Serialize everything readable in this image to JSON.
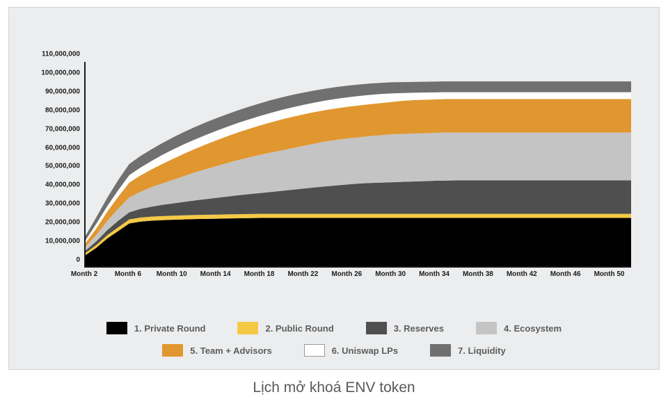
{
  "caption": "Lịch mở khoá ENV token",
  "chart": {
    "type": "stacked-area",
    "background_color": "#ecedee",
    "plot_background": "#ecedee",
    "axis_color": "#1b1b1b",
    "axis_label_fontsize": 10,
    "axis_label_color": "#1b1b1b",
    "ylim": [
      0,
      110000000
    ],
    "ytick_step": 10000000,
    "y_ticks": [
      {
        "v": 0,
        "label": "0"
      },
      {
        "v": 10000000,
        "label": "10,000,000"
      },
      {
        "v": 20000000,
        "label": "20,000,000"
      },
      {
        "v": 30000000,
        "label": "30,000,000"
      },
      {
        "v": 40000000,
        "label": "40,000,000"
      },
      {
        "v": 50000000,
        "label": "50,000,000"
      },
      {
        "v": 60000000,
        "label": "60,000,000"
      },
      {
        "v": 70000000,
        "label": "70,000,000"
      },
      {
        "v": 80000000,
        "label": "80,000,000"
      },
      {
        "v": 90000000,
        "label": "90,000,000"
      },
      {
        "v": 100000000,
        "label": "100,000,000"
      },
      {
        "v": 110000000,
        "label": "110,000,000"
      }
    ],
    "x_categories": [
      2,
      3,
      4,
      5,
      6,
      7,
      8,
      9,
      10,
      11,
      12,
      13,
      14,
      15,
      16,
      17,
      18,
      19,
      20,
      21,
      22,
      23,
      24,
      25,
      26,
      27,
      28,
      29,
      30,
      31,
      32,
      33,
      34,
      35,
      36,
      37,
      38,
      39,
      40,
      41,
      42,
      43,
      44,
      45,
      46,
      47,
      48,
      49,
      50,
      51,
      52
    ],
    "x_tick_labels": [
      "Month 2",
      "Month 6",
      "Month 10",
      "Month 14",
      "Month 18",
      "Month 22",
      "Month 26",
      "Month 30",
      "Month 34",
      "Month 38",
      "Month 42",
      "Month 46",
      "Month 50"
    ],
    "x_tick_positions": [
      2,
      6,
      10,
      14,
      18,
      22,
      26,
      30,
      34,
      38,
      42,
      46,
      50
    ],
    "series": [
      {
        "name": "1. Private Round",
        "color": "#000000",
        "cum": [
          6000000,
          10000000,
          15000000,
          19000000,
          23000000,
          24000000,
          24500000,
          24800000,
          25000000,
          25200000,
          25400000,
          25500000,
          25600000,
          25700000,
          25800000,
          25900000,
          26000000,
          26000000,
          26000000,
          26000000,
          26000000,
          26000000,
          26000000,
          26000000,
          26000000,
          26000000,
          26000000,
          26000000,
          26000000,
          26000000,
          26000000,
          26000000,
          26000000,
          26000000,
          26000000,
          26000000,
          26000000,
          26000000,
          26000000,
          26000000,
          26000000,
          26000000,
          26000000,
          26000000,
          26000000,
          26000000,
          26000000,
          26000000,
          26000000,
          26000000,
          26000000
        ]
      },
      {
        "name": "2. Public Round",
        "color": "#f5c945",
        "cum": [
          7200000,
          11500000,
          16800000,
          21000000,
          25200000,
          26200000,
          26700000,
          27000000,
          27200000,
          27400000,
          27600000,
          27700000,
          27800000,
          27900000,
          28000000,
          28100000,
          28200000,
          28200000,
          28200000,
          28200000,
          28200000,
          28200000,
          28200000,
          28200000,
          28200000,
          28200000,
          28200000,
          28200000,
          28200000,
          28200000,
          28200000,
          28200000,
          28200000,
          28200000,
          28200000,
          28200000,
          28200000,
          28200000,
          28200000,
          28200000,
          28200000,
          28200000,
          28200000,
          28200000,
          28200000,
          28200000,
          28200000,
          28200000,
          28200000,
          28200000,
          28200000
        ]
      },
      {
        "name": "3. Reserves",
        "color": "#4f4f4f",
        "cum": [
          8500000,
          13500000,
          19500000,
          24500000,
          29000000,
          30800000,
          32000000,
          33000000,
          33800000,
          34600000,
          35400000,
          36100000,
          36800000,
          37500000,
          38200000,
          38800000,
          39400000,
          40000000,
          40600000,
          41200000,
          41800000,
          42400000,
          43000000,
          43500000,
          44000000,
          44500000,
          44800000,
          45000000,
          45200000,
          45400000,
          45600000,
          45800000,
          46000000,
          46100000,
          46200000,
          46200000,
          46200000,
          46200000,
          46200000,
          46200000,
          46200000,
          46200000,
          46200000,
          46200000,
          46200000,
          46200000,
          46200000,
          46200000,
          46200000,
          46200000,
          46200000
        ]
      },
      {
        "name": "4. Ecosystem",
        "color": "#c4c4c4",
        "cum": [
          10500000,
          17000000,
          24500000,
          31000000,
          37000000,
          40000000,
          42500000,
          44500000,
          46500000,
          48500000,
          50500000,
          52200000,
          53900000,
          55600000,
          57200000,
          58600000,
          60000000,
          61200000,
          62400000,
          63600000,
          64800000,
          66000000,
          67200000,
          68000000,
          68800000,
          69400000,
          70000000,
          70500000,
          71000000,
          71200000,
          71400000,
          71600000,
          71800000,
          72000000,
          72000000,
          72000000,
          72000000,
          72000000,
          72000000,
          72000000,
          72000000,
          72000000,
          72000000,
          72000000,
          72000000,
          72000000,
          72000000,
          72000000,
          72000000,
          72000000,
          72000000
        ]
      },
      {
        "name": "5. Team + Advisors",
        "color": "#e1972f",
        "cum": [
          12500000,
          20500000,
          29500000,
          37500000,
          45000000,
          48800000,
          52000000,
          55000000,
          57800000,
          60500000,
          63100000,
          65500000,
          67800000,
          70000000,
          72100000,
          74000000,
          75800000,
          77500000,
          79100000,
          80500000,
          81800000,
          83000000,
          84100000,
          85000000,
          85800000,
          86500000,
          87200000,
          87800000,
          88400000,
          89000000,
          89400000,
          89600000,
          89800000,
          90000000,
          90000000,
          90000000,
          90000000,
          90000000,
          90000000,
          90000000,
          90000000,
          90000000,
          90000000,
          90000000,
          90000000,
          90000000,
          90000000,
          90000000,
          90000000,
          90000000,
          90000000
        ]
      },
      {
        "name": "6. Uniswap LPs",
        "color": "#ffffff",
        "cum": [
          14000000,
          23000000,
          32500000,
          41000000,
          49000000,
          53000000,
          56500000,
          59800000,
          62800000,
          65600000,
          68200000,
          70600000,
          72900000,
          75100000,
          77200000,
          79100000,
          80900000,
          82600000,
          84200000,
          85600000,
          86900000,
          88100000,
          89200000,
          90100000,
          90900000,
          91600000,
          92200000,
          92700000,
          93000000,
          93200000,
          93400000,
          93500000,
          93600000,
          93700000,
          93700000,
          93700000,
          93700000,
          93700000,
          93700000,
          93700000,
          93700000,
          93700000,
          93700000,
          93700000,
          93700000,
          93700000,
          93700000,
          93700000,
          93700000,
          93700000,
          93700000
        ]
      },
      {
        "name": "7. Liquidity",
        "color": "#707070",
        "cum": [
          16500000,
          26500000,
          37000000,
          46500000,
          55000000,
          59200000,
          62800000,
          66200000,
          69300000,
          72200000,
          74900000,
          77400000,
          79700000,
          81900000,
          84000000,
          85900000,
          87700000,
          89400000,
          90900000,
          92300000,
          93500000,
          94600000,
          95600000,
          96500000,
          97200000,
          97800000,
          98300000,
          98700000,
          99000000,
          99100000,
          99200000,
          99300000,
          99400000,
          99500000,
          99500000,
          99500000,
          99500000,
          99500000,
          99500000,
          99500000,
          99500000,
          99500000,
          99500000,
          99500000,
          99500000,
          99500000,
          99500000,
          99500000,
          99500000,
          99500000,
          99500000
        ]
      }
    ],
    "legend": {
      "rows": [
        [
          {
            "label": "1. Private Round",
            "color": "#000000"
          },
          {
            "label": "2. Public Round",
            "color": "#f5c945"
          },
          {
            "label": "3. Reserves",
            "color": "#4f4f4f"
          },
          {
            "label": "4. Ecosystem",
            "color": "#c4c4c4"
          }
        ],
        [
          {
            "label": "5. Team + Advisors",
            "color": "#e1972f"
          },
          {
            "label": "6. Uniswap LPs",
            "color": "#ffffff"
          },
          {
            "label": "7. Liquidity",
            "color": "#707070"
          }
        ]
      ],
      "label_color": "#5d5d5d",
      "label_fontsize": 13,
      "swatch_border": "#9a9a9a"
    }
  }
}
